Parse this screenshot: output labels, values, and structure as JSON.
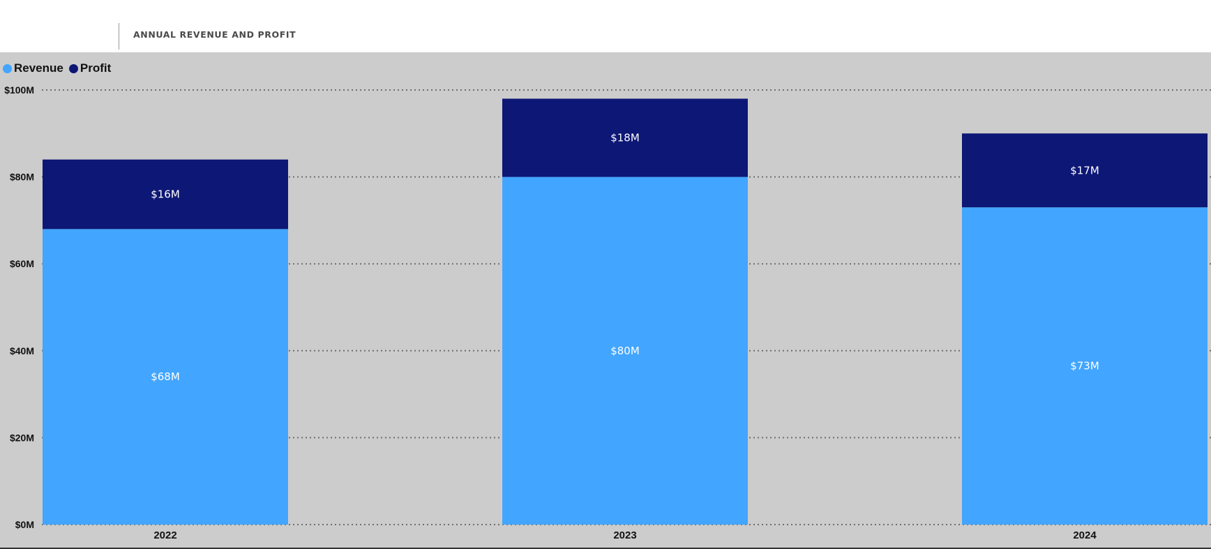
{
  "header": {
    "title": "ANNUAL REVENUE AND PROFIT"
  },
  "colors": {
    "revenue": "#42a5ff",
    "profit": "#0d1775",
    "grid": "#6e6e6e",
    "background": "#cccccc"
  },
  "chart_data": {
    "type": "bar",
    "stacked": true,
    "title": "ANNUAL REVENUE AND PROFIT",
    "categories": [
      "2022",
      "2023",
      "2024"
    ],
    "series": [
      {
        "name": "Revenue",
        "values": [
          68,
          80,
          73
        ],
        "labels": [
          "$68M",
          "$80M",
          "$73M"
        ]
      },
      {
        "name": "Profit",
        "values": [
          16,
          18,
          17
        ],
        "labels": [
          "$16M",
          "$18M",
          "$17M"
        ]
      }
    ],
    "ylim": [
      0,
      100
    ],
    "yticks": [
      0,
      20,
      40,
      60,
      80,
      100
    ],
    "ytick_labels": [
      "$0M",
      "$20M",
      "$40M",
      "$60M",
      "$80M",
      "$100M"
    ],
    "xlabel": "",
    "ylabel": "",
    "grid": "dotted horizontal",
    "legend": "top-left"
  }
}
